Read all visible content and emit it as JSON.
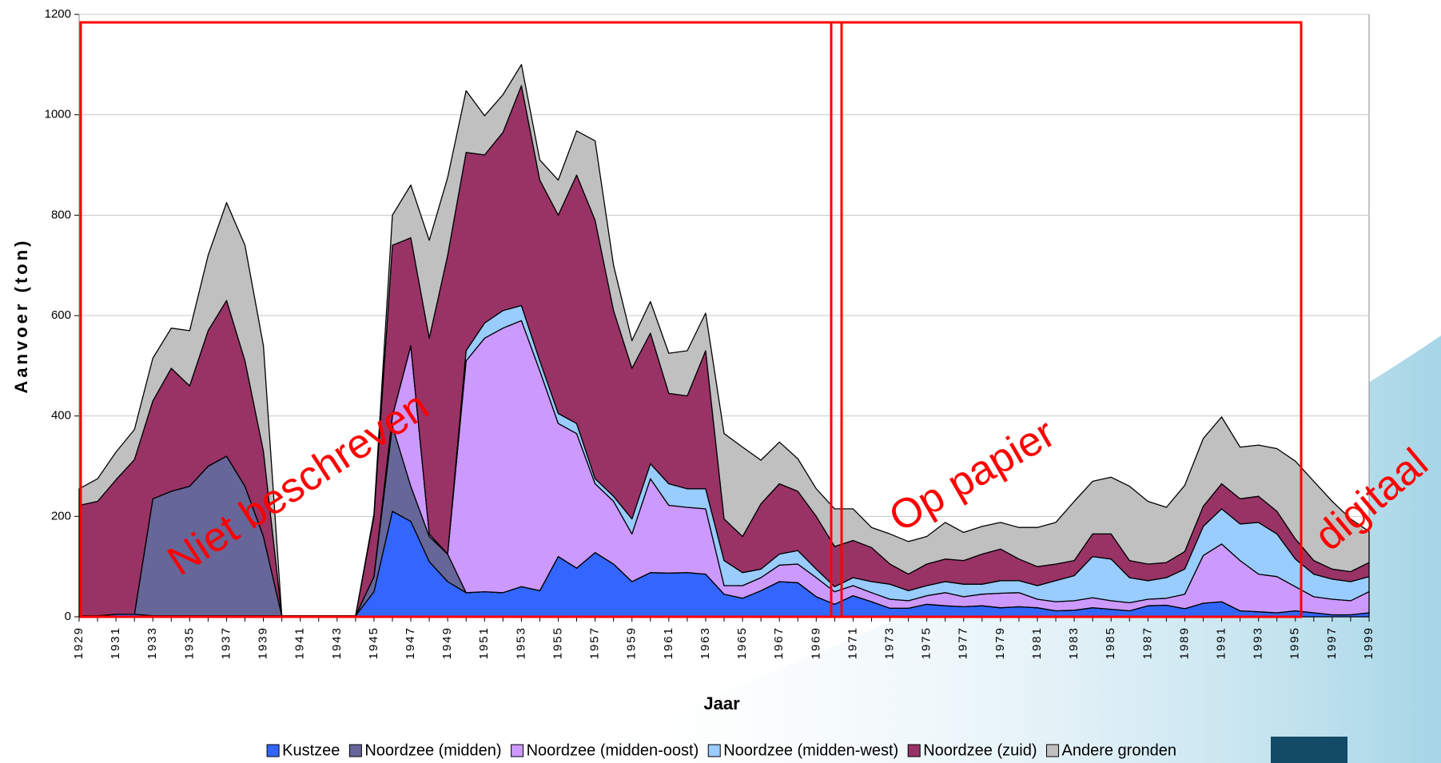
{
  "chart_data": {
    "type": "stacked-area",
    "y_label": "Aanvoer (ton)",
    "x_label": "Jaar",
    "annotations": [
      "Niet beschreven",
      "Op papier",
      "digitaal"
    ],
    "categories": [
      "1929",
      null,
      "1931",
      null,
      "1933",
      null,
      "1935",
      null,
      "1937",
      null,
      "1939",
      null,
      "1941",
      null,
      "1943",
      null,
      "1945",
      null,
      "1947",
      null,
      "1949",
      null,
      "1951",
      null,
      "1953",
      null,
      "1955",
      null,
      "1957",
      null,
      "1959",
      null,
      "1961",
      null,
      "1963",
      null,
      "1965",
      null,
      "1967",
      null,
      "1969",
      null,
      "1971",
      null,
      "1973",
      null,
      "1975",
      null,
      "1977",
      null,
      "1979",
      null,
      "1981",
      null,
      "1983",
      null,
      "1985",
      null,
      "1987",
      null,
      "1989",
      null,
      "1991",
      null,
      "1993",
      null,
      "1995",
      null,
      "1997",
      null,
      "1999"
    ],
    "series": [
      {
        "name": "Kustzee",
        "color": "#3366ff",
        "values": [
          2,
          2,
          5,
          5,
          2,
          2,
          2,
          2,
          2,
          2,
          2,
          2,
          2,
          2,
          2,
          2,
          50,
          210,
          190,
          110,
          70,
          48,
          50,
          48,
          60,
          52,
          120,
          97,
          128,
          105,
          70,
          88,
          87,
          88,
          85,
          45,
          37,
          52,
          70,
          68,
          40,
          25,
          42,
          30,
          17,
          17,
          25,
          22,
          20,
          22,
          18,
          20,
          18,
          12,
          13,
          18,
          15,
          12,
          22,
          23,
          16,
          27,
          30,
          12,
          10,
          8,
          12,
          8,
          4,
          4,
          8
        ]
      },
      {
        "name": "Noordzee (midden)",
        "color": "#666699",
        "values": [
          0,
          0,
          0,
          0,
          233,
          248,
          258,
          298,
          318,
          258,
          158,
          0,
          0,
          0,
          0,
          0,
          30,
          170,
          70,
          50,
          55,
          0,
          0,
          0,
          0,
          0,
          0,
          0,
          0,
          0,
          0,
          0,
          0,
          0,
          0,
          0,
          0,
          0,
          0,
          0,
          0,
          0,
          0,
          0,
          0,
          0,
          0,
          0,
          0,
          0,
          0,
          0,
          0,
          0,
          0,
          0,
          0,
          0,
          0,
          0,
          0,
          0,
          0,
          0,
          0,
          0,
          0,
          0,
          0,
          0,
          0
        ]
      },
      {
        "name": "Noordzee (midden-oost)",
        "color": "#cc99ff",
        "values": [
          0,
          0,
          0,
          0,
          0,
          0,
          0,
          0,
          0,
          0,
          0,
          0,
          0,
          0,
          0,
          0,
          0,
          20,
          280,
          5,
          0,
          462,
          505,
          527,
          530,
          438,
          265,
          268,
          137,
          125,
          95,
          187,
          135,
          130,
          130,
          17,
          25,
          26,
          33,
          37,
          38,
          25,
          20,
          18,
          18,
          15,
          17,
          26,
          20,
          23,
          29,
          28,
          17,
          18,
          19,
          20,
          17,
          16,
          13,
          14,
          29,
          95,
          115,
          100,
          75,
          72,
          48,
          32,
          31,
          28,
          42
        ]
      },
      {
        "name": "Noordzee (midden-west)",
        "color": "#99ccff",
        "values": [
          0,
          0,
          0,
          0,
          0,
          0,
          0,
          0,
          0,
          0,
          0,
          0,
          0,
          0,
          0,
          0,
          0,
          0,
          0,
          0,
          0,
          20,
          30,
          35,
          30,
          20,
          20,
          20,
          10,
          10,
          30,
          30,
          43,
          37,
          40,
          50,
          26,
          17,
          22,
          27,
          17,
          10,
          16,
          22,
          30,
          20,
          20,
          22,
          25,
          20,
          25,
          24,
          27,
          42,
          50,
          82,
          83,
          50,
          37,
          41,
          50,
          58,
          70,
          73,
          103,
          85,
          55,
          45,
          40,
          38,
          30
        ]
      },
      {
        "name": "Noordzee (zuid)",
        "color": "#993366",
        "values": [
          220,
          228,
          268,
          308,
          195,
          245,
          200,
          270,
          310,
          250,
          170,
          0,
          0,
          0,
          0,
          0,
          120,
          340,
          215,
          390,
          595,
          395,
          335,
          355,
          438,
          360,
          395,
          495,
          515,
          370,
          300,
          260,
          180,
          185,
          275,
          83,
          72,
          130,
          140,
          118,
          105,
          80,
          74,
          68,
          40,
          33,
          43,
          45,
          47,
          60,
          63,
          43,
          38,
          33,
          30,
          45,
          50,
          34,
          33,
          30,
          35,
          40,
          50,
          50,
          52,
          45,
          40,
          27,
          20,
          20,
          28
        ]
      },
      {
        "name": "Andere gronden",
        "color": "#c0c0c0",
        "values": [
          33,
          45,
          55,
          60,
          85,
          80,
          110,
          150,
          195,
          230,
          210,
          0,
          0,
          0,
          0,
          0,
          5,
          60,
          105,
          195,
          155,
          123,
          78,
          75,
          42,
          40,
          70,
          88,
          158,
          90,
          55,
          63,
          80,
          90,
          75,
          170,
          178,
          87,
          83,
          65,
          55,
          75,
          63,
          40,
          60,
          65,
          55,
          73,
          56,
          55,
          53,
          63,
          78,
          83,
          118,
          105,
          113,
          148,
          125,
          110,
          132,
          135,
          133,
          103,
          102,
          125,
          155,
          158,
          135,
          105,
          62
        ]
      }
    ],
    "ylim": [
      0,
      1200
    ],
    "yticks": [
      0,
      200,
      400,
      600,
      800,
      1000,
      1200
    ],
    "grid": true,
    "legend": "bottom"
  }
}
